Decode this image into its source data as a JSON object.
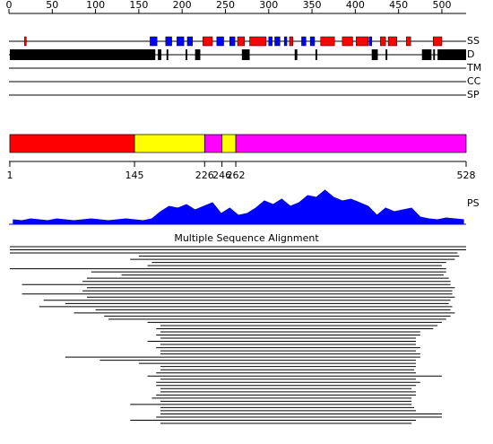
{
  "ruler": {
    "xlim": [
      0,
      528
    ],
    "ticks": [
      0,
      50,
      100,
      150,
      200,
      250,
      300,
      350,
      400,
      450,
      500
    ]
  },
  "tracks": {
    "ss": "SS",
    "d": "D",
    "tm": "TM",
    "cc": "CC",
    "sp": "SP"
  },
  "ss": [
    {
      "type": "helix",
      "start": 18,
      "end": 20
    },
    {
      "type": "strand",
      "start": 163,
      "end": 171
    },
    {
      "type": "strand",
      "start": 181,
      "end": 188
    },
    {
      "type": "strand",
      "start": 194,
      "end": 202
    },
    {
      "type": "strand",
      "start": 206,
      "end": 212
    },
    {
      "type": "helix",
      "start": 224,
      "end": 235
    },
    {
      "type": "strand",
      "start": 240,
      "end": 248
    },
    {
      "type": "strand",
      "start": 255,
      "end": 261
    },
    {
      "type": "helix",
      "start": 264,
      "end": 272
    },
    {
      "type": "helix",
      "start": 278,
      "end": 297
    },
    {
      "type": "strand",
      "start": 300,
      "end": 304
    },
    {
      "type": "strand",
      "start": 307,
      "end": 313
    },
    {
      "type": "strand",
      "start": 318,
      "end": 321
    },
    {
      "type": "helix",
      "start": 324,
      "end": 328
    },
    {
      "type": "strand",
      "start": 338,
      "end": 343
    },
    {
      "type": "strand",
      "start": 348,
      "end": 353
    },
    {
      "type": "helix",
      "start": 360,
      "end": 376
    },
    {
      "type": "helix",
      "start": 385,
      "end": 397
    },
    {
      "type": "helix",
      "start": 401,
      "end": 415
    },
    {
      "type": "strand",
      "start": 416,
      "end": 419
    },
    {
      "type": "helix",
      "start": 429,
      "end": 435
    },
    {
      "type": "helix",
      "start": 438,
      "end": 448
    },
    {
      "type": "helix",
      "start": 459,
      "end": 464
    },
    {
      "type": "helix",
      "start": 490,
      "end": 500
    }
  ],
  "ss_colors": {
    "helix": "#ff0000",
    "strand": "#0000ff"
  },
  "disorder": [
    [
      1,
      169
    ],
    [
      172,
      176
    ],
    [
      182,
      184
    ],
    [
      204,
      206
    ],
    [
      215,
      221
    ],
    [
      269,
      278
    ],
    [
      330,
      333
    ],
    [
      354,
      356
    ],
    [
      419,
      426
    ],
    [
      435,
      437
    ],
    [
      477,
      488
    ],
    [
      490,
      492
    ],
    [
      495,
      528
    ]
  ],
  "domains": {
    "segments": [
      {
        "start": 1,
        "end": 145,
        "color": "#ff0000"
      },
      {
        "start": 145,
        "end": 226,
        "color": "#ffff00"
      },
      {
        "start": 226,
        "end": 246,
        "color": "#ff00ff"
      },
      {
        "start": 246,
        "end": 262,
        "color": "#ffff00"
      },
      {
        "start": 262,
        "end": 528,
        "color": "#ff00ff"
      }
    ],
    "boundaries": [
      1,
      145,
      226,
      246,
      262,
      528
    ]
  },
  "ps": {
    "label": "PS",
    "ylim": [
      0,
      40
    ],
    "color": "#0000ff",
    "residues": [
      5,
      15,
      25,
      35,
      45,
      55,
      65,
      75,
      85,
      95,
      105,
      115,
      125,
      135,
      145,
      155,
      165,
      175,
      185,
      195,
      205,
      215,
      225,
      235,
      245,
      255,
      265,
      275,
      285,
      295,
      305,
      315,
      325,
      335,
      345,
      355,
      365,
      375,
      385,
      395,
      405,
      415,
      425,
      435,
      445,
      455,
      465,
      475,
      485,
      495,
      505,
      515,
      525
    ],
    "values": [
      5,
      4,
      6,
      5,
      4,
      6,
      5,
      4,
      5,
      6,
      5,
      4,
      5,
      6,
      5,
      4,
      6,
      14,
      20,
      18,
      22,
      16,
      20,
      24,
      12,
      18,
      10,
      12,
      18,
      26,
      22,
      28,
      20,
      24,
      32,
      30,
      38,
      30,
      26,
      28,
      24,
      20,
      10,
      18,
      14,
      16,
      18,
      8,
      6,
      5,
      7,
      6,
      5
    ]
  },
  "msa": {
    "title": "Multiple Sequence Alignment",
    "rows": [
      [
        1,
        528
      ],
      [
        1,
        528
      ],
      [
        1,
        518
      ],
      [
        150,
        520
      ],
      [
        140,
        515
      ],
      [
        165,
        505
      ],
      [
        160,
        500
      ],
      [
        1,
        505
      ],
      [
        95,
        505
      ],
      [
        130,
        502
      ],
      [
        90,
        508
      ],
      [
        85,
        510
      ],
      [
        15,
        510
      ],
      [
        90,
        515
      ],
      [
        85,
        512
      ],
      [
        15,
        512
      ],
      [
        90,
        515
      ],
      [
        40,
        510
      ],
      [
        65,
        508
      ],
      [
        35,
        512
      ],
      [
        100,
        510
      ],
      [
        75,
        515
      ],
      [
        110,
        510
      ],
      [
        115,
        505
      ],
      [
        160,
        500
      ],
      [
        175,
        495
      ],
      [
        170,
        490
      ],
      [
        175,
        475
      ],
      [
        170,
        475
      ],
      [
        175,
        470
      ],
      [
        160,
        470
      ],
      [
        175,
        470
      ],
      [
        170,
        475
      ],
      [
        175,
        470
      ],
      [
        175,
        475
      ],
      [
        65,
        475
      ],
      [
        105,
        470
      ],
      [
        150,
        470
      ],
      [
        175,
        470
      ],
      [
        175,
        468
      ],
      [
        170,
        470
      ],
      [
        160,
        500
      ],
      [
        175,
        470
      ],
      [
        170,
        475
      ],
      [
        170,
        470
      ],
      [
        175,
        465
      ],
      [
        175,
        470
      ],
      [
        170,
        470
      ],
      [
        165,
        465
      ],
      [
        175,
        465
      ],
      [
        140,
        465
      ],
      [
        175,
        468
      ],
      [
        175,
        470
      ],
      [
        175,
        500
      ],
      [
        170,
        500
      ],
      [
        140,
        470
      ],
      [
        175,
        465
      ]
    ]
  }
}
